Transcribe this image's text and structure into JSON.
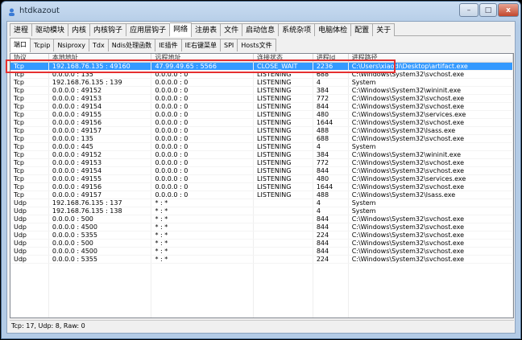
{
  "window": {
    "title": "htdkazout",
    "minimize": "–",
    "maximize": "□",
    "close": "x"
  },
  "main_tabs": [
    "进程",
    "驱动模块",
    "内核",
    "内核钩子",
    "应用层钩子",
    "网络",
    "注册表",
    "文件",
    "启动信息",
    "系统杂项",
    "电脑体检",
    "配置",
    "关于"
  ],
  "main_active": "网络",
  "sub_tabs": [
    "端口",
    "Tcpip",
    "Nsiproxy",
    "Tdx",
    "Ndis处理函数",
    "IE插件",
    "IE右键菜单",
    "SPI",
    "Hosts文件"
  ],
  "sub_active": "端口",
  "columns": [
    "协议",
    "本地地址",
    "远程地址",
    "连接状态",
    "进程Id",
    "进程路径"
  ],
  "rows": [
    [
      "Tcp",
      "192.168.76.135 : 49160",
      "47.99.49.65 : 5566",
      "CLOSE_WAIT",
      "2236",
      "C:\\Users\\xiaodi\\Desktop\\artifact.exe"
    ],
    [
      "Tcp",
      "0.0.0.0 : 135",
      "0.0.0.0 : 0",
      "LISTENING",
      "688",
      "C:\\Windows\\System32\\svchost.exe"
    ],
    [
      "Tcp",
      "192.168.76.135 : 139",
      "0.0.0.0 : 0",
      "LISTENING",
      "4",
      "System"
    ],
    [
      "Tcp",
      "0.0.0.0 : 49152",
      "0.0.0.0 : 0",
      "LISTENING",
      "384",
      "C:\\Windows\\System32\\wininit.exe"
    ],
    [
      "Tcp",
      "0.0.0.0 : 49153",
      "0.0.0.0 : 0",
      "LISTENING",
      "772",
      "C:\\Windows\\System32\\svchost.exe"
    ],
    [
      "Tcp",
      "0.0.0.0 : 49154",
      "0.0.0.0 : 0",
      "LISTENING",
      "844",
      "C:\\Windows\\System32\\svchost.exe"
    ],
    [
      "Tcp",
      "0.0.0.0 : 49155",
      "0.0.0.0 : 0",
      "LISTENING",
      "480",
      "C:\\Windows\\System32\\services.exe"
    ],
    [
      "Tcp",
      "0.0.0.0 : 49156",
      "0.0.0.0 : 0",
      "LISTENING",
      "1644",
      "C:\\Windows\\System32\\svchost.exe"
    ],
    [
      "Tcp",
      "0.0.0.0 : 49157",
      "0.0.0.0 : 0",
      "LISTENING",
      "488",
      "C:\\Windows\\System32\\lsass.exe"
    ],
    [
      "Tcp",
      "0.0.0.0 : 135",
      "0.0.0.0 : 0",
      "LISTENING",
      "688",
      "C:\\Windows\\System32\\svchost.exe"
    ],
    [
      "Tcp",
      "0.0.0.0 : 445",
      "0.0.0.0 : 0",
      "LISTENING",
      "4",
      "System"
    ],
    [
      "Tcp",
      "0.0.0.0 : 49152",
      "0.0.0.0 : 0",
      "LISTENING",
      "384",
      "C:\\Windows\\System32\\wininit.exe"
    ],
    [
      "Tcp",
      "0.0.0.0 : 49153",
      "0.0.0.0 : 0",
      "LISTENING",
      "772",
      "C:\\Windows\\System32\\svchost.exe"
    ],
    [
      "Tcp",
      "0.0.0.0 : 49154",
      "0.0.0.0 : 0",
      "LISTENING",
      "844",
      "C:\\Windows\\System32\\svchost.exe"
    ],
    [
      "Tcp",
      "0.0.0.0 : 49155",
      "0.0.0.0 : 0",
      "LISTENING",
      "480",
      "C:\\Windows\\System32\\services.exe"
    ],
    [
      "Tcp",
      "0.0.0.0 : 49156",
      "0.0.0.0 : 0",
      "LISTENING",
      "1644",
      "C:\\Windows\\System32\\svchost.exe"
    ],
    [
      "Tcp",
      "0.0.0.0 : 49157",
      "0.0.0.0 : 0",
      "LISTENING",
      "488",
      "C:\\Windows\\System32\\lsass.exe"
    ],
    [
      "Udp",
      "192.168.76.135 : 137",
      "* : *",
      "",
      "4",
      "System"
    ],
    [
      "Udp",
      "192.168.76.135 : 138",
      "* : *",
      "",
      "4",
      "System"
    ],
    [
      "Udp",
      "0.0.0.0 : 500",
      "* : *",
      "",
      "844",
      "C:\\Windows\\System32\\svchost.exe"
    ],
    [
      "Udp",
      "0.0.0.0 : 4500",
      "* : *",
      "",
      "844",
      "C:\\Windows\\System32\\svchost.exe"
    ],
    [
      "Udp",
      "0.0.0.0 : 5355",
      "* : *",
      "",
      "224",
      "C:\\Windows\\System32\\svchost.exe"
    ],
    [
      "Udp",
      "0.0.0.0 : 500",
      "* : *",
      "",
      "844",
      "C:\\Windows\\System32\\svchost.exe"
    ],
    [
      "Udp",
      "0.0.0.0 : 4500",
      "* : *",
      "",
      "844",
      "C:\\Windows\\System32\\svchost.exe"
    ],
    [
      "Udp",
      "0.0.0.0 : 5355",
      "* : *",
      "",
      "224",
      "C:\\Windows\\System32\\svchost.exe"
    ]
  ],
  "selected_row": 0,
  "status": "Tcp: 17, Udp: 8, Raw: 0",
  "colors": {
    "selection": "#3399ff",
    "highlight_box": "#e53030"
  }
}
